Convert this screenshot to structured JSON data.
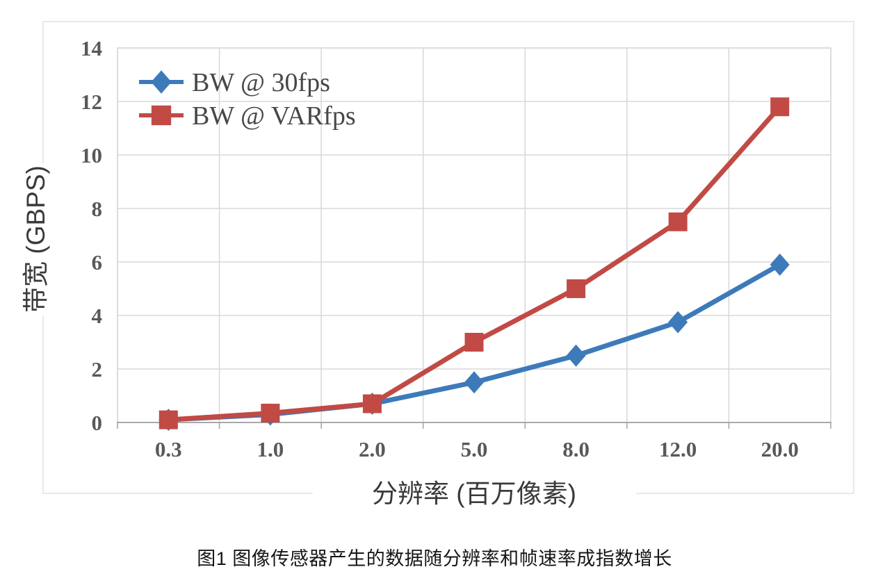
{
  "figure": {
    "caption": "图1 图像传感器产生的数据随分辨率和帧速率成指数增长"
  },
  "chart_data": {
    "type": "line",
    "title": "",
    "xlabel": "分辨率 (百万像素)",
    "ylabel": "带宽 (GBPS)",
    "categories": [
      "0.3",
      "1.0",
      "2.0",
      "5.0",
      "8.0",
      "12.0",
      "20.0"
    ],
    "series": [
      {
        "name": "BW @ 30fps",
        "marker": "diamond",
        "color": "#3d7ab9",
        "values": [
          0.1,
          0.3,
          0.7,
          1.5,
          2.5,
          3.75,
          5.9
        ]
      },
      {
        "name": "BW @ VARfps",
        "marker": "square",
        "color": "#c14a45",
        "values": [
          0.1,
          0.35,
          0.7,
          3.0,
          5.0,
          7.5,
          11.8
        ]
      }
    ],
    "ylim": [
      0,
      14
    ],
    "ytick_step": 2,
    "grid": true,
    "legend_position": "top-left-inside",
    "colors": {
      "background": "#ffffff",
      "gridline": "#d9d9d9",
      "axis_line": "#a8a8a8",
      "tick_label": "#595959",
      "axis_title": "#3a3a3a",
      "legend_text": "#474747",
      "chart_border": "#e2e2e2"
    }
  }
}
